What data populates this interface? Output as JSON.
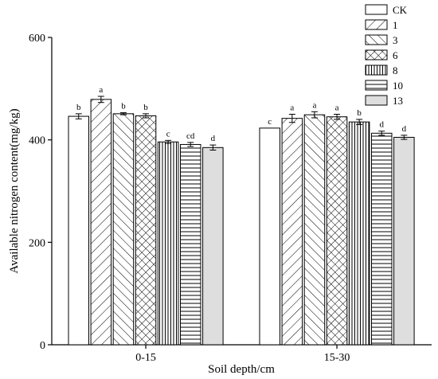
{
  "chart_data": {
    "type": "bar",
    "title": "",
    "xlabel": "Soil depth/cm",
    "ylabel": "Available nitrogen content(mg/kg)",
    "ylim": [
      0,
      600
    ],
    "yticks": [
      0,
      200,
      400,
      600
    ],
    "grid": false,
    "legend_position": "top-right",
    "categories": [
      "0-15",
      "15-30"
    ],
    "series": [
      {
        "name": "CK",
        "pattern": "solid-white",
        "values": [
          446,
          423
        ],
        "errors": [
          5,
          0
        ],
        "letters": [
          "b",
          "c"
        ]
      },
      {
        "name": "1",
        "pattern": "forward-diagonal",
        "values": [
          479,
          442
        ],
        "errors": [
          6,
          8
        ],
        "letters": [
          "a",
          "a"
        ]
      },
      {
        "name": "3",
        "pattern": "back-diagonal",
        "values": [
          451,
          449
        ],
        "errors": [
          2,
          6
        ],
        "letters": [
          "b",
          "a"
        ]
      },
      {
        "name": "6",
        "pattern": "crosshatch",
        "values": [
          447,
          445
        ],
        "errors": [
          4,
          5
        ],
        "letters": [
          "b",
          "a"
        ]
      },
      {
        "name": "8",
        "pattern": "vertical-lines",
        "values": [
          396,
          435
        ],
        "errors": [
          3,
          5
        ],
        "letters": [
          "c",
          "b"
        ]
      },
      {
        "name": "10",
        "pattern": "horizontal-lines",
        "values": [
          391,
          413
        ],
        "errors": [
          4,
          4
        ],
        "letters": [
          "cd",
          "d"
        ]
      },
      {
        "name": "13",
        "pattern": "light-gray",
        "values": [
          385,
          405
        ],
        "errors": [
          5,
          4
        ],
        "letters": [
          "d",
          "d"
        ]
      }
    ]
  }
}
